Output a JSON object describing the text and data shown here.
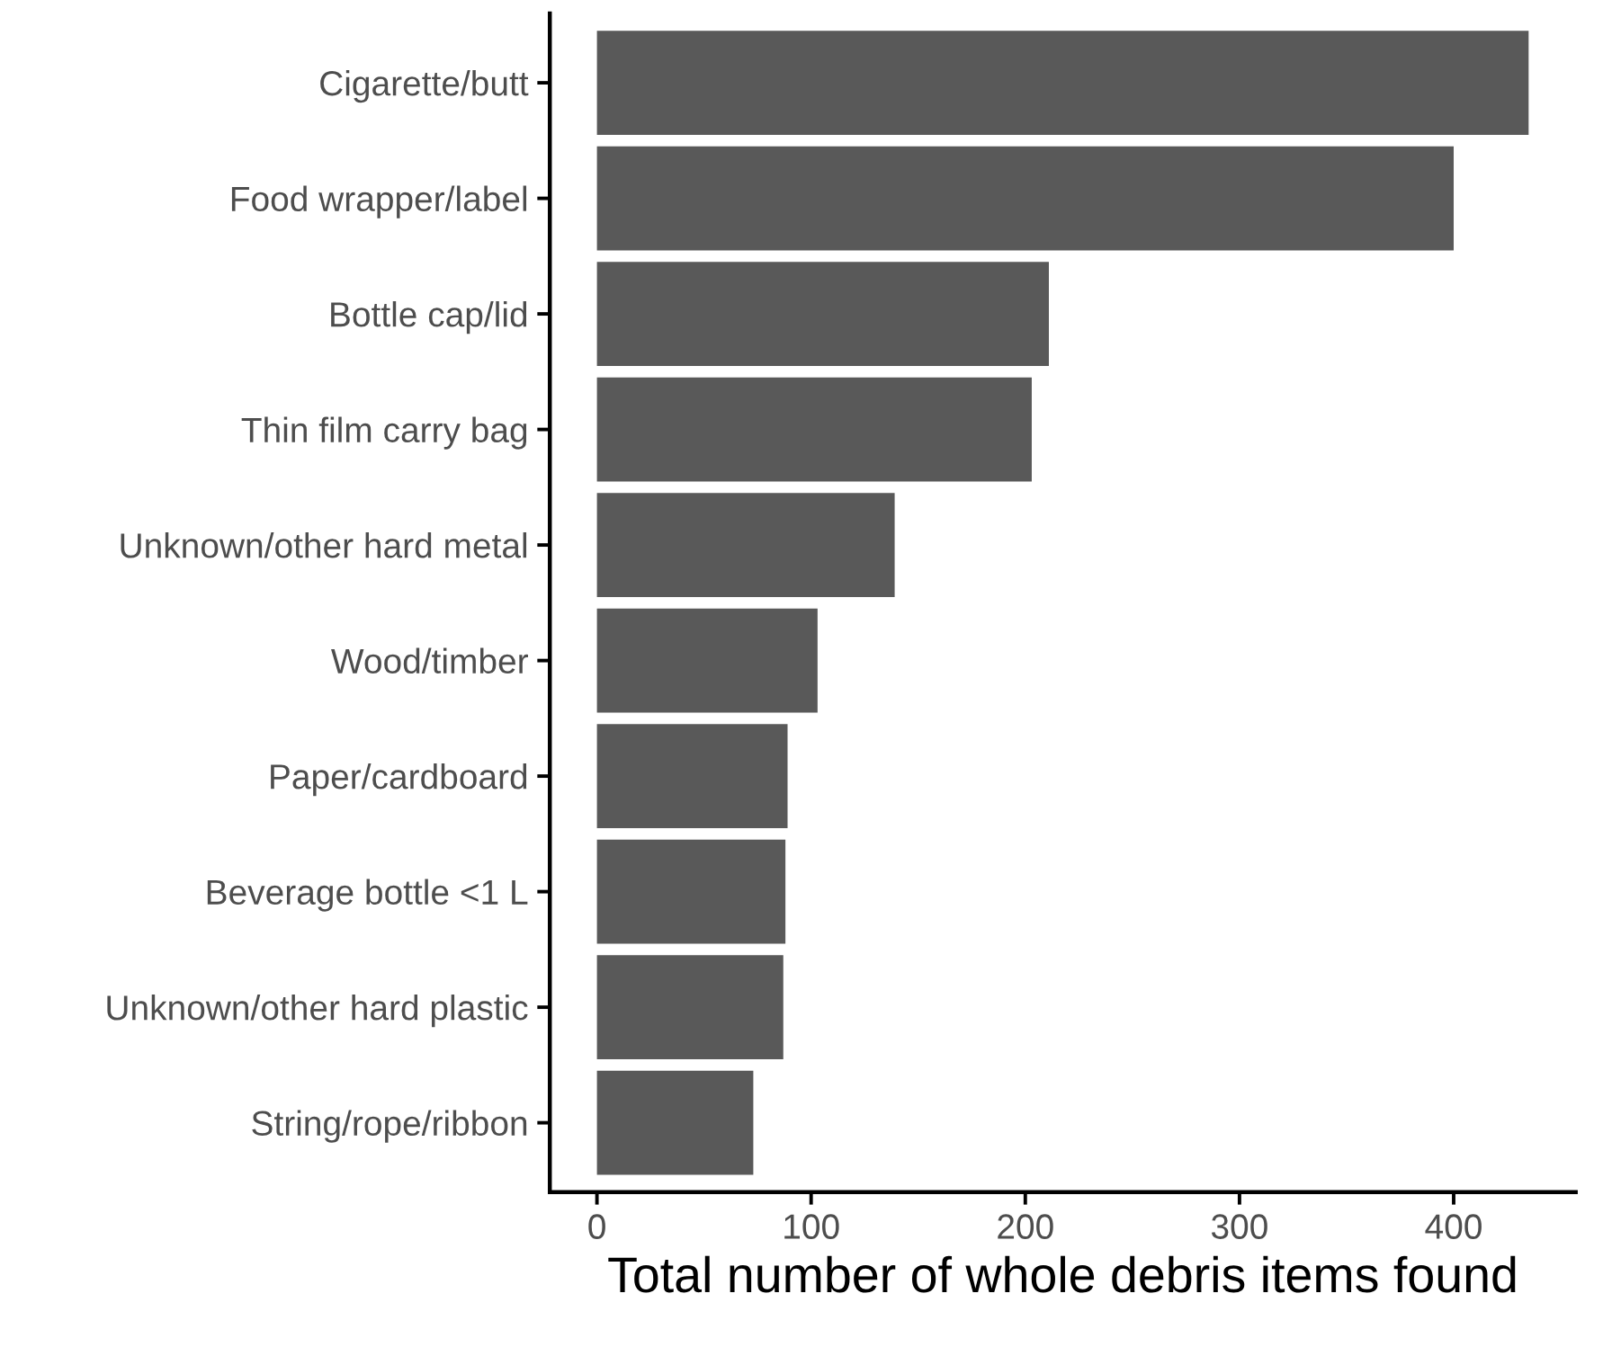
{
  "chart_data": {
    "type": "bar",
    "orientation": "horizontal",
    "xlabel": "Total number of whole debris items found",
    "categories": [
      "Cigarette/butt",
      "Food wrapper/label",
      "Bottle cap/lid",
      "Thin film carry bag",
      "Unknown/other hard metal",
      "Wood/timber",
      "Paper/cardboard",
      "Beverage bottle <1 L",
      "Unknown/other hard plastic",
      "String/rope/ribbon"
    ],
    "values": [
      435,
      400,
      211,
      203,
      139,
      103,
      89,
      88,
      87,
      73
    ],
    "color": "#595959",
    "xlim": [
      -22,
      457
    ],
    "xticks": [
      0,
      100,
      200,
      300,
      400
    ],
    "grid": false
  }
}
